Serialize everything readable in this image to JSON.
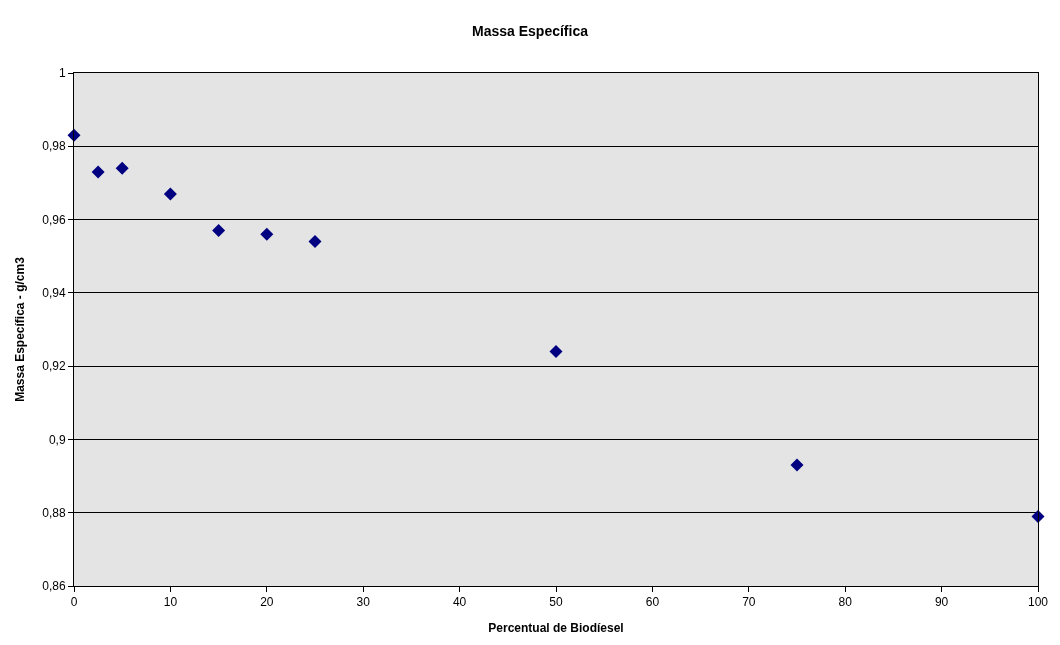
{
  "chart_data": {
    "type": "scatter",
    "title": "Massa Específica",
    "xlabel": "Percentual de Biodíesel",
    "ylabel": "Massa Específica - g/cm3",
    "x": [
      0,
      2.5,
      5,
      10,
      15,
      20,
      25,
      50,
      75,
      100
    ],
    "series": [
      {
        "color": "#000080",
        "values": [
          0.983,
          0.973,
          0.974,
          0.967,
          0.957,
          0.956,
          0.954,
          0.924,
          0.893,
          0.879
        ]
      }
    ],
    "xlim": [
      0,
      100
    ],
    "xticks": [
      0,
      10,
      20,
      30,
      40,
      50,
      60,
      70,
      80,
      90,
      100
    ],
    "ylim": [
      0.86,
      1
    ],
    "yticks": [
      {
        "value": 0.86,
        "label": "0,86"
      },
      {
        "value": 0.88,
        "label": "0,88"
      },
      {
        "value": 0.9,
        "label": "0,9"
      },
      {
        "value": 0.92,
        "label": "0,92"
      },
      {
        "value": 0.94,
        "label": "0,94"
      },
      {
        "value": 0.96,
        "label": "0,96"
      },
      {
        "value": 0.98,
        "label": "0,98"
      },
      {
        "value": 1,
        "label": "1"
      }
    ],
    "grid": "y",
    "marker": "diamond",
    "legend": false
  }
}
